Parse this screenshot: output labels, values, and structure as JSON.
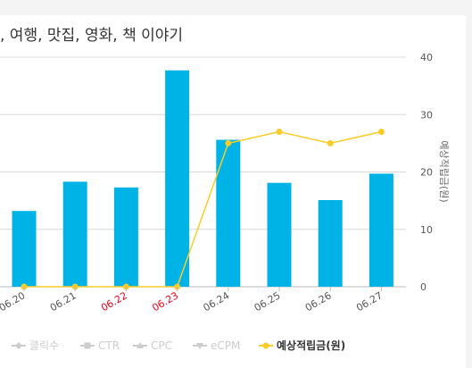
{
  "chart_data": {
    "type": "bar",
    "title": ", 여행, 맛집, 영화, 책 이야기",
    "categories": [
      "06.20",
      "06.21",
      "06.22",
      "06.23",
      "06.24",
      "06.25",
      "06.26",
      "06.27"
    ],
    "category_colors": [
      "#555555",
      "#555555",
      "#e8001c",
      "#e8001c",
      "#555555",
      "#555555",
      "#555555",
      "#555555"
    ],
    "series": [
      {
        "name": "예상적립금(원)",
        "type": "bar",
        "values": [
          13.2,
          18.3,
          17.3,
          37.7,
          25.6,
          18.1,
          15.1,
          19.7
        ],
        "color": "#00b3e6"
      },
      {
        "name": "예상적립금(원)",
        "type": "line",
        "values": [
          0,
          0,
          0,
          0,
          25,
          27,
          25,
          27
        ],
        "color": "#f9cc29"
      }
    ],
    "ylabel_right": "예상적립금(원)",
    "ylim": [
      0,
      40
    ],
    "yticks": [
      "0",
      "10",
      "20",
      "30",
      "40"
    ],
    "grid": true,
    "legend_position": "bottom",
    "legend": [
      {
        "label": "클릭수",
        "active": false,
        "color": "#cccccc",
        "marker": "diamond"
      },
      {
        "label": "CTR",
        "active": false,
        "color": "#cccccc",
        "marker": "square"
      },
      {
        "label": "CPC",
        "active": false,
        "color": "#cccccc",
        "marker": "triangle"
      },
      {
        "label": "eCPM",
        "active": false,
        "color": "#cccccc",
        "marker": "triangle-down"
      },
      {
        "label": "예상적립금(원)",
        "active": true,
        "color": "#f9cc29",
        "marker": "circle"
      }
    ]
  }
}
